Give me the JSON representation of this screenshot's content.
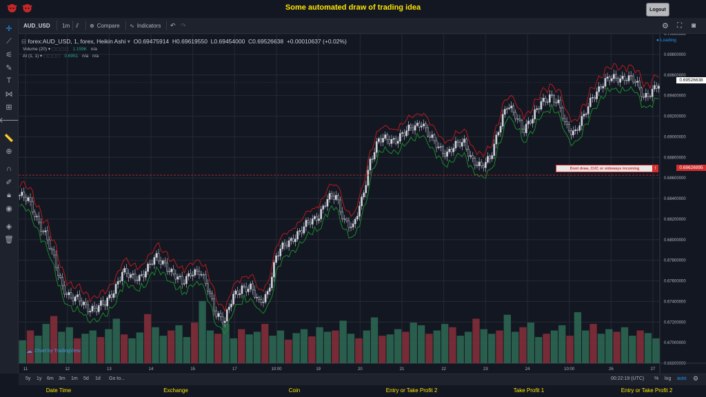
{
  "header": {
    "title": "Some automated draw of trading idea",
    "logout_label": "Logout"
  },
  "toolbar": {
    "symbol": "AUD_USD",
    "interval": "1m",
    "compare_label": "Compare",
    "indicators_label": "Indicators"
  },
  "legend": {
    "main_series": "forex:AUD_USD, 1, forex, Heikin Ashi",
    "ohlc": {
      "open": "O0.69475914",
      "high": "H0.69619550",
      "low": "L0.69454000",
      "close": "C0.69526638",
      "change": "+0.00010637 (+0.02%)"
    },
    "volume_label": "Volume (20)",
    "volume_value": "1.159K",
    "volume_na": "n/a",
    "ai_label": "AI (1, 1)",
    "ai_value": "0.6951",
    "ai_na1": "n/a",
    "ai_na2": "n/a",
    "loading": "Loading"
  },
  "annotation": {
    "text": "Dont draw, CUC or sideways incoming",
    "flag": "!"
  },
  "price_tags": {
    "last": "0.69526638",
    "line": "0.68626995"
  },
  "watermark": "Chart by TradingView",
  "bottom": {
    "ranges": [
      "5y",
      "1y",
      "6m",
      "3m",
      "1m",
      "5d",
      "1d"
    ],
    "goto": "Go to...",
    "clock": "00:22:19 (UTC)",
    "percent": "%",
    "log": "log",
    "auto": "auto"
  },
  "footer": {
    "items": [
      "Date Time",
      "Exchange",
      "Coin",
      "Entry or Take Profit 2",
      "Take Profit 1",
      "Entry or Take Profit 2"
    ]
  },
  "colors": {
    "up": "#26a69a",
    "down": "#ef5350",
    "candle": "#d1d4dc",
    "upper_band": "#b71c1c",
    "lower_band": "#1b8a2a",
    "accent": "#ffe600"
  },
  "chart_data": {
    "type": "line",
    "series_type": "candlestick",
    "y_ticks": [
      "0.70000000",
      "0.69800000",
      "0.69600000",
      "0.69400000",
      "0.69200000",
      "0.69000000",
      "0.68800000",
      "0.68600000",
      "0.68400000",
      "0.68200000",
      "0.68000000",
      "0.67800000",
      "0.67600000",
      "0.67400000",
      "0.67200000",
      "0.67000000",
      "0.66800000"
    ],
    "x_ticks": [
      "11",
      "12",
      "13",
      "14",
      "15",
      "17",
      "10:00",
      "19",
      "20",
      "21",
      "22",
      "23",
      "24",
      "10:00",
      "26",
      "27"
    ],
    "ylim": [
      0.668,
      0.7
    ],
    "line_level": 0.68626995,
    "close_path": [
      [
        0,
        0.6843
      ],
      [
        2,
        0.6837
      ],
      [
        4,
        0.6822
      ],
      [
        6,
        0.6805
      ],
      [
        8,
        0.678
      ],
      [
        10,
        0.6756
      ],
      [
        12,
        0.6743
      ],
      [
        14,
        0.674
      ],
      [
        16,
        0.6735
      ],
      [
        18,
        0.6733
      ],
      [
        20,
        0.6737
      ],
      [
        22,
        0.6752
      ],
      [
        24,
        0.6768
      ],
      [
        26,
        0.6763
      ],
      [
        28,
        0.6765
      ],
      [
        30,
        0.6772
      ],
      [
        32,
        0.6782
      ],
      [
        34,
        0.6778
      ],
      [
        36,
        0.6765
      ],
      [
        38,
        0.6757
      ],
      [
        40,
        0.677
      ],
      [
        42,
        0.6768
      ],
      [
        44,
        0.6752
      ],
      [
        46,
        0.673
      ],
      [
        48,
        0.672
      ],
      [
        50,
        0.6745
      ],
      [
        52,
        0.6755
      ],
      [
        54,
        0.6752
      ],
      [
        56,
        0.6738
      ],
      [
        58,
        0.675
      ],
      [
        60,
        0.6782
      ],
      [
        62,
        0.6795
      ],
      [
        64,
        0.6803
      ],
      [
        66,
        0.6808
      ],
      [
        68,
        0.6818
      ],
      [
        70,
        0.6825
      ],
      [
        72,
        0.6838
      ],
      [
        74,
        0.6842
      ],
      [
        76,
        0.682
      ],
      [
        78,
        0.681
      ],
      [
        80,
        0.6838
      ],
      [
        82,
        0.6878
      ],
      [
        84,
        0.6895
      ],
      [
        86,
        0.6898
      ],
      [
        88,
        0.6898
      ],
      [
        90,
        0.6902
      ],
      [
        92,
        0.691
      ],
      [
        94,
        0.6915
      ],
      [
        96,
        0.6898
      ],
      [
        98,
        0.689
      ],
      [
        100,
        0.6885
      ],
      [
        102,
        0.689
      ],
      [
        104,
        0.6895
      ],
      [
        106,
        0.6878
      ],
      [
        108,
        0.6868
      ],
      [
        110,
        0.688
      ],
      [
        112,
        0.6908
      ],
      [
        114,
        0.6928
      ],
      [
        116,
        0.6922
      ],
      [
        118,
        0.6908
      ],
      [
        120,
        0.6916
      ],
      [
        122,
        0.6935
      ],
      [
        124,
        0.694
      ],
      [
        126,
        0.693
      ],
      [
        128,
        0.691
      ],
      [
        130,
        0.6905
      ],
      [
        132,
        0.6918
      ],
      [
        134,
        0.694
      ],
      [
        136,
        0.695
      ],
      [
        138,
        0.6955
      ],
      [
        140,
        0.6958
      ],
      [
        142,
        0.6958
      ],
      [
        144,
        0.6952
      ],
      [
        146,
        0.694
      ],
      [
        148,
        0.6945
      ],
      [
        150,
        0.695
      ]
    ],
    "volume": [
      0.35,
      0.5,
      0.42,
      0.6,
      0.72,
      0.48,
      0.55,
      0.38,
      0.45,
      0.5,
      0.4,
      0.52,
      0.68,
      0.44,
      0.38,
      0.47,
      0.75,
      0.55,
      0.42,
      0.5,
      0.58,
      0.4,
      0.62,
      0.95,
      0.5,
      0.45,
      0.6,
      0.38,
      0.52,
      0.44,
      0.48,
      0.6,
      0.42,
      0.5,
      0.36,
      0.46,
      0.52,
      0.41,
      0.55,
      0.48,
      0.5,
      0.65,
      0.45,
      0.38,
      0.5,
      0.7,
      0.42,
      0.44,
      0.52,
      0.48,
      0.62,
      0.58,
      0.45,
      0.5,
      0.6,
      0.55,
      0.42,
      0.48,
      0.68,
      0.52,
      0.45,
      0.5,
      0.74,
      0.48,
      0.55,
      0.62,
      0.4,
      0.45,
      0.5,
      0.58,
      0.42,
      0.78,
      0.5,
      0.6,
      0.45,
      0.52,
      0.48,
      0.55,
      0.42,
      0.5,
      0.46,
      0.38
    ]
  }
}
